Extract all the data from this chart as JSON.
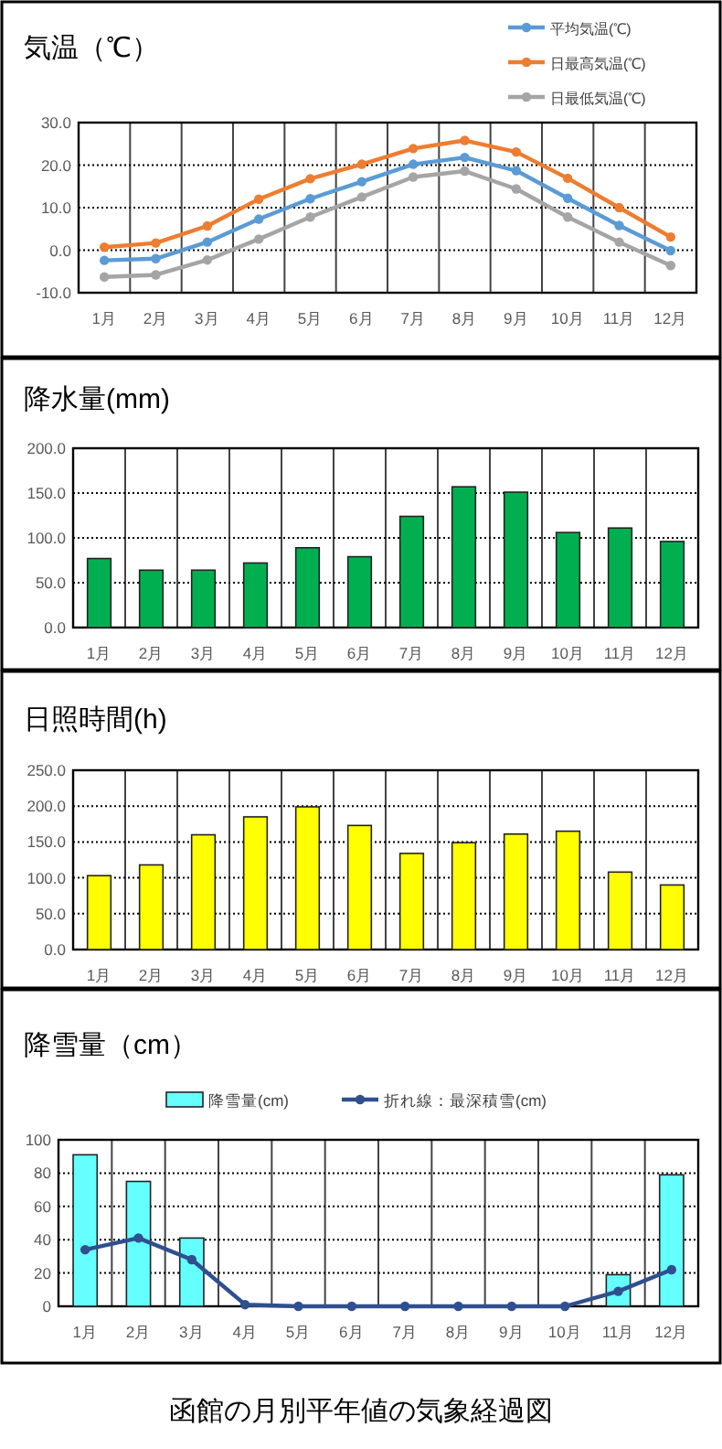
{
  "chart_data": [
    {
      "type": "line",
      "title": "気温（℃）",
      "categories": [
        "1月",
        "2月",
        "3月",
        "4月",
        "5月",
        "6月",
        "7月",
        "8月",
        "9月",
        "10月",
        "11月",
        "12月"
      ],
      "series": [
        {
          "name": "平均気温(℃)",
          "color": "#5b9bd5",
          "values": [
            -2.4,
            -2.0,
            1.9,
            7.3,
            12.1,
            16.1,
            20.2,
            21.8,
            18.7,
            12.2,
            5.8,
            -0.1
          ]
        },
        {
          "name": "日最高気温(℃)",
          "color": "#ed7d31",
          "values": [
            0.7,
            1.7,
            5.7,
            12.0,
            16.8,
            20.2,
            23.9,
            25.8,
            23.1,
            16.9,
            10.0,
            3.1
          ]
        },
        {
          "name": "日最低気温(℃)",
          "color": "#a5a5a5",
          "values": [
            -6.3,
            -5.8,
            -2.3,
            2.6,
            7.8,
            12.5,
            17.2,
            18.6,
            14.4,
            7.8,
            1.9,
            -3.6
          ]
        }
      ],
      "ylim": [
        -10,
        30
      ],
      "yticks": [
        {
          "value": -10,
          "label": "-10.0"
        },
        {
          "value": 0,
          "label": "0.0"
        },
        {
          "value": 10,
          "label": "10.0"
        },
        {
          "value": 20,
          "label": "20.0"
        },
        {
          "value": 30,
          "label": "30.0"
        }
      ],
      "grid": true,
      "legend": "top right",
      "marker": "circle"
    },
    {
      "type": "bar",
      "title": "降水量(mm)",
      "categories": [
        "1月",
        "2月",
        "3月",
        "4月",
        "5月",
        "6月",
        "7月",
        "8月",
        "9月",
        "10月",
        "11月",
        "12月"
      ],
      "values": [
        77,
        64,
        64,
        72,
        89,
        79,
        124,
        157,
        151,
        106,
        111,
        96
      ],
      "color": "#00b050",
      "ylim": [
        0,
        200
      ],
      "yticks": [
        {
          "value": 0,
          "label": "0.0"
        },
        {
          "value": 50,
          "label": "50.0"
        },
        {
          "value": 100,
          "label": "100.0"
        },
        {
          "value": 150,
          "label": "150.0"
        },
        {
          "value": 200,
          "label": "200.0"
        }
      ],
      "grid": true
    },
    {
      "type": "bar",
      "title": "日照時間(h)",
      "categories": [
        "1月",
        "2月",
        "3月",
        "4月",
        "5月",
        "6月",
        "7月",
        "8月",
        "9月",
        "10月",
        "11月",
        "12月"
      ],
      "values": [
        103,
        118,
        160,
        185,
        199,
        173,
        134,
        149,
        161,
        165,
        108,
        90
      ],
      "color": "#ffff00",
      "ylim": [
        0,
        250
      ],
      "yticks": [
        {
          "value": 0,
          "label": "0.0"
        },
        {
          "value": 50,
          "label": "50.0"
        },
        {
          "value": 100,
          "label": "100.0"
        },
        {
          "value": 150,
          "label": "150.0"
        },
        {
          "value": 200,
          "label": "200.0"
        },
        {
          "value": 250,
          "label": "250.0"
        }
      ],
      "grid": true
    },
    {
      "type": "bar",
      "title": "降雪量（cm）",
      "categories": [
        "1月",
        "2月",
        "3月",
        "4月",
        "5月",
        "6月",
        "7月",
        "8月",
        "9月",
        "10月",
        "11月",
        "12月"
      ],
      "series": [
        {
          "name": "降雪量(cm)",
          "color": "#66ffff",
          "values": [
            91,
            75,
            41,
            0,
            0,
            0,
            0,
            0,
            0,
            0,
            19,
            79
          ]
        },
        {
          "name": "折れ線：最深積雪(cm)",
          "type": "line",
          "color": "#2f4f8f",
          "values": [
            34,
            41,
            28,
            1,
            0,
            0,
            0,
            0,
            0,
            0,
            9,
            22
          ]
        }
      ],
      "ylim": [
        0,
        100
      ],
      "yticks": [
        0,
        20,
        40,
        60,
        80,
        100
      ],
      "grid": true,
      "legend": "top",
      "marker": "circle",
      "annotations": [
        "函館の月別平年値の気象経過図"
      ]
    }
  ]
}
